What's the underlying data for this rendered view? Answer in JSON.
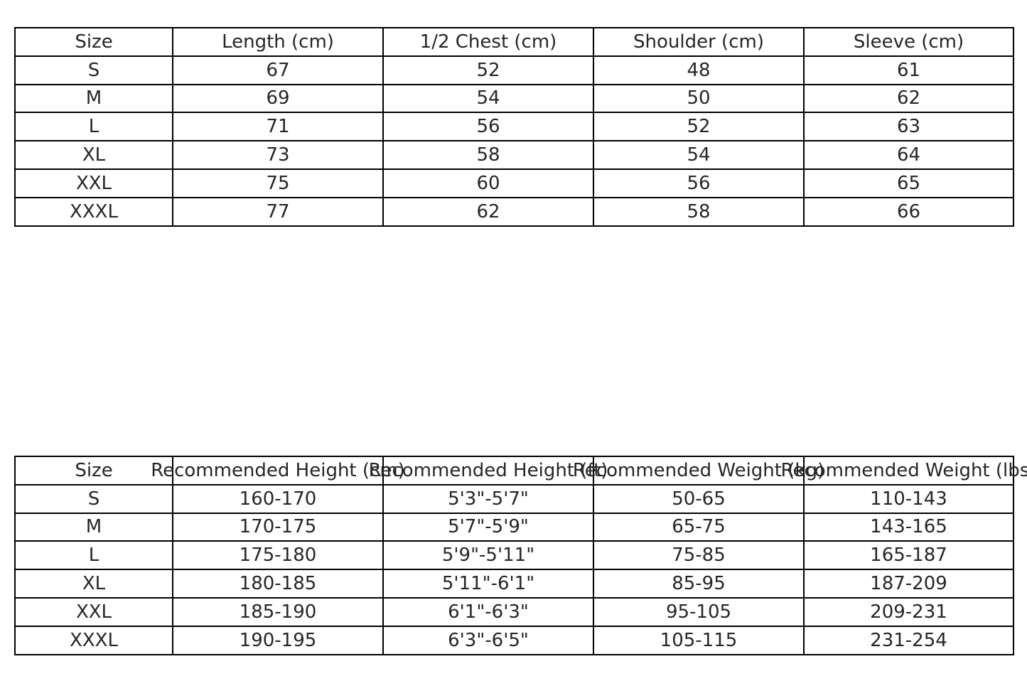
{
  "chart_data": [
    {
      "type": "table",
      "columns": [
        "Size",
        "Length (cm)",
        "1/2 Chest (cm)",
        "Shoulder (cm)",
        "Sleeve (cm)"
      ],
      "rows": [
        [
          "S",
          "67",
          "52",
          "48",
          "61"
        ],
        [
          "M",
          "69",
          "54",
          "50",
          "62"
        ],
        [
          "L",
          "71",
          "56",
          "52",
          "63"
        ],
        [
          "XL",
          "73",
          "58",
          "54",
          "64"
        ],
        [
          "XXL",
          "75",
          "60",
          "56",
          "65"
        ],
        [
          "XXXL",
          "77",
          "62",
          "58",
          "66"
        ]
      ]
    },
    {
      "type": "table",
      "columns": [
        "Size",
        "Recommended Height (cm)",
        "Recommended Height (ft)",
        "Recommended Weight (kg)",
        "Recommended Weight (lbs)"
      ],
      "rows": [
        [
          "S",
          "160-170",
          "5'3\"-5'7\"",
          "50-65",
          "110-143"
        ],
        [
          "M",
          "170-175",
          "5'7\"-5'9\"",
          "65-75",
          "143-165"
        ],
        [
          "L",
          "175-180",
          "5'9\"-5'11\"",
          "75-85",
          "165-187"
        ],
        [
          "XL",
          "180-185",
          "5'11\"-6'1\"",
          "85-95",
          "187-209"
        ],
        [
          "XXL",
          "185-190",
          "6'1\"-6'3\"",
          "95-105",
          "209-231"
        ],
        [
          "XXXL",
          "190-195",
          "6'3\"-6'5\"",
          "105-115",
          "231-254"
        ]
      ]
    }
  ]
}
